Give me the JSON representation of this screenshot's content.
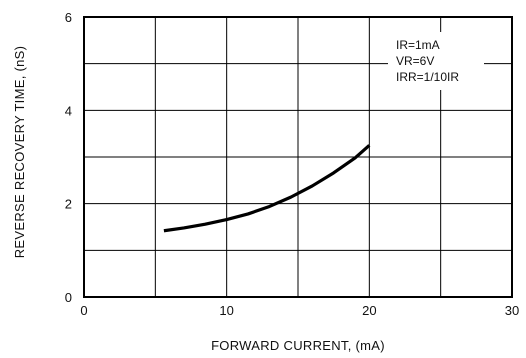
{
  "chart_data": {
    "type": "line",
    "xlabel": "FORWARD  CURRENT, (mA)",
    "ylabel": "REVERSE  RECOVERY  TIME, (nS)",
    "xlim": [
      0,
      30
    ],
    "ylim": [
      0,
      6
    ],
    "x_ticks": [
      0,
      5,
      10,
      15,
      20,
      25,
      30
    ],
    "y_ticks": [
      0,
      1,
      2,
      3,
      4,
      5,
      6
    ],
    "x_tick_labels": [
      "0",
      "10",
      "20",
      "30"
    ],
    "y_tick_labels": [
      "0",
      "2",
      "4",
      "6"
    ],
    "grid": true,
    "annotations": [
      "IR=1mA",
      "VR=6V",
      "IRR=1/10IR"
    ],
    "series": [
      {
        "x": [
          5.6,
          7,
          8.5,
          10,
          11.5,
          13,
          14.5,
          16,
          17.5,
          19,
          20
        ],
        "y": [
          1.42,
          1.48,
          1.56,
          1.66,
          1.78,
          1.94,
          2.14,
          2.38,
          2.66,
          2.98,
          3.25
        ]
      }
    ]
  }
}
